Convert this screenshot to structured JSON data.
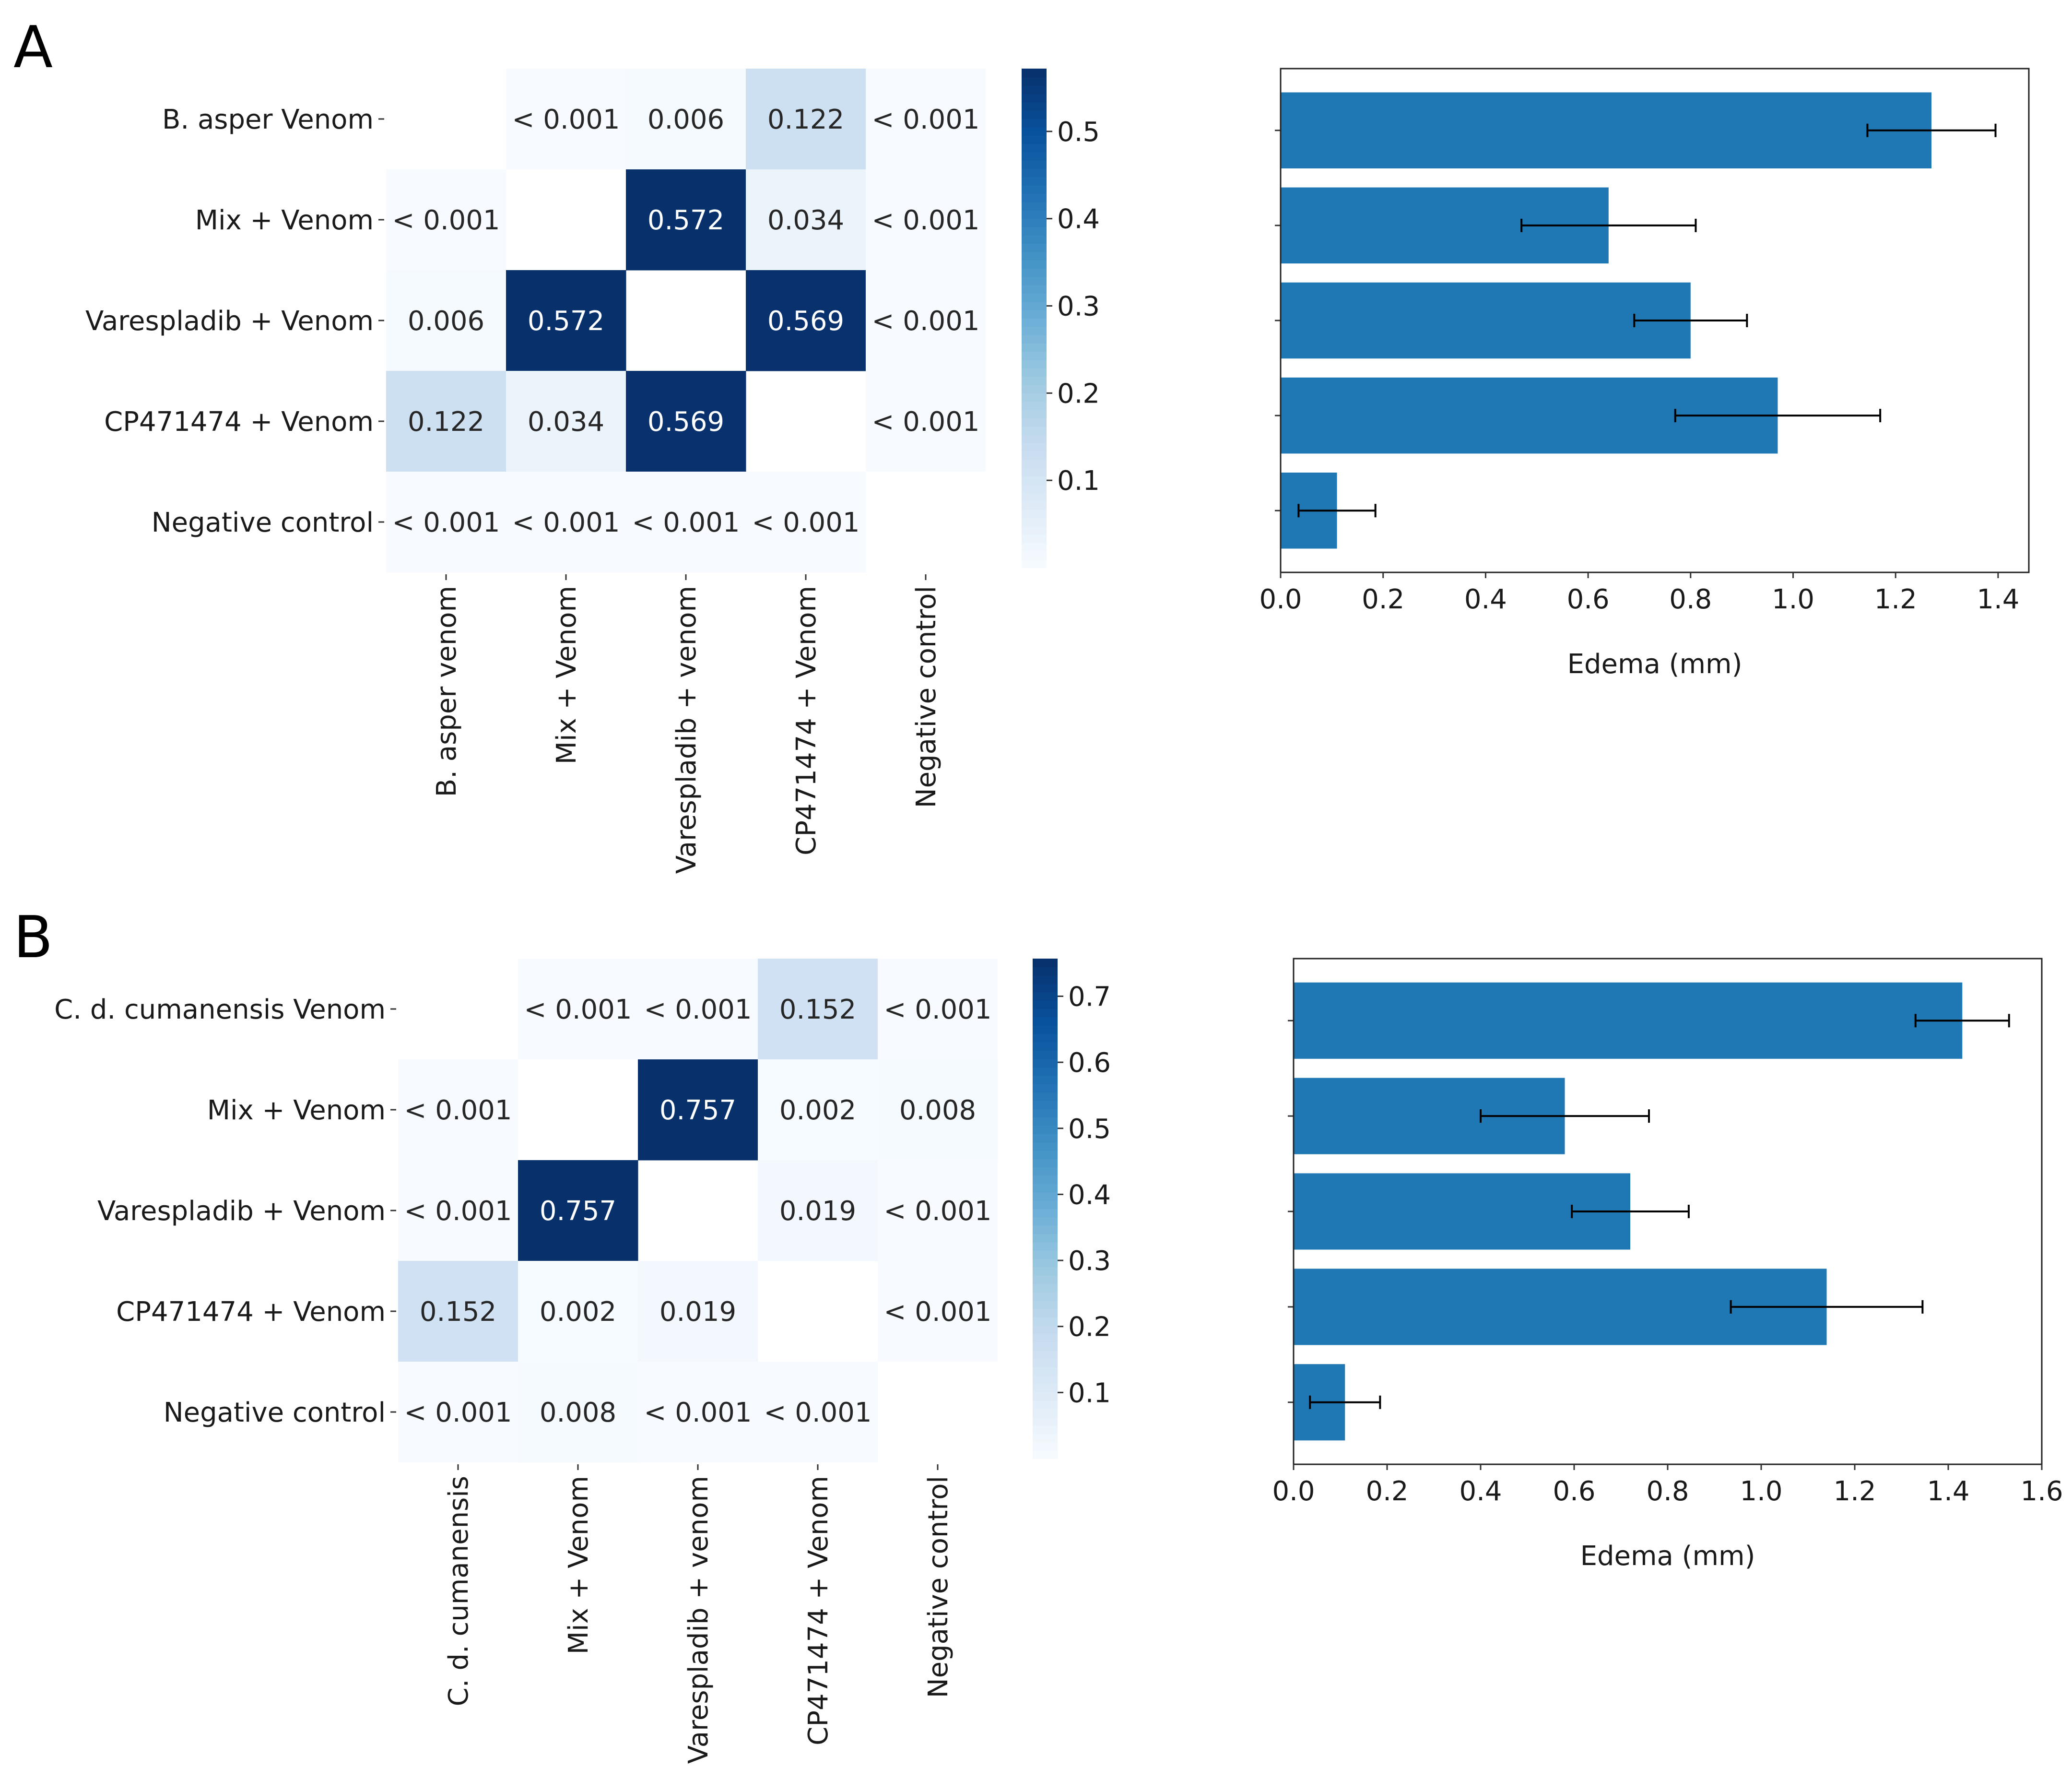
{
  "panels": [
    {
      "letter": "A",
      "chart_data": [
        {
          "type": "heatmap",
          "row_labels": [
            "B. asper Venom",
            "Mix + Venom",
            "Varespladib + Venom",
            "CP471474 + Venom",
            "Negative control"
          ],
          "col_labels": [
            "B. asper venom",
            "Mix + Venom",
            "Varespladib + venom",
            "CP471474 + Venom",
            "Negative control"
          ],
          "cells": [
            [
              null,
              "< 0.001",
              "0.006",
              "0.122",
              "< 0.001"
            ],
            [
              "< 0.001",
              null,
              "0.572",
              "0.034",
              "< 0.001"
            ],
            [
              "0.006",
              "0.572",
              null,
              "0.569",
              "< 0.001"
            ],
            [
              "0.122",
              "0.034",
              "0.569",
              null,
              "< 0.001"
            ],
            [
              "< 0.001",
              "< 0.001",
              "< 0.001",
              "< 0.001",
              null
            ]
          ],
          "colormap": "Blues",
          "vmin": 0.0,
          "vmax": 0.572,
          "colorbar_ticks": [
            "0.1",
            "0.2",
            "0.3",
            "0.4",
            "0.5"
          ]
        },
        {
          "type": "bar",
          "orientation": "horizontal",
          "values": [
            1.27,
            0.64,
            0.8,
            0.97,
            0.11
          ],
          "errors": [
            0.125,
            0.17,
            0.11,
            0.2,
            0.075
          ],
          "xlabel": "Edema (mm)",
          "xlim": [
            0.0,
            1.46
          ],
          "xticks": [
            "0.0",
            "0.2",
            "0.4",
            "0.6",
            "0.8",
            "1.0",
            "1.2",
            "1.4"
          ],
          "bar_color": "#1f77b4"
        }
      ]
    },
    {
      "letter": "B",
      "chart_data": [
        {
          "type": "heatmap",
          "row_labels": [
            "C. d. cumanensis Venom",
            "Mix + Venom",
            "Varespladib + Venom",
            "CP471474 + Venom",
            "Negative control"
          ],
          "col_labels": [
            "C. d. cumanensis",
            "Mix + Venom",
            "Varespladib + venom",
            "CP471474 + Venom",
            "Negative control"
          ],
          "cells": [
            [
              null,
              "< 0.001",
              "< 0.001",
              "0.152",
              "< 0.001"
            ],
            [
              "< 0.001",
              null,
              "0.757",
              "0.002",
              "0.008"
            ],
            [
              "< 0.001",
              "0.757",
              null,
              "0.019",
              "< 0.001"
            ],
            [
              "0.152",
              "0.002",
              "0.019",
              null,
              "< 0.001"
            ],
            [
              "< 0.001",
              "0.008",
              "< 0.001",
              "< 0.001",
              null
            ]
          ],
          "colormap": "Blues",
          "vmin": 0.0,
          "vmax": 0.757,
          "colorbar_ticks": [
            "0.1",
            "0.2",
            "0.3",
            "0.4",
            "0.5",
            "0.6",
            "0.7"
          ]
        },
        {
          "type": "bar",
          "orientation": "horizontal",
          "values": [
            1.43,
            0.58,
            0.72,
            1.14,
            0.11
          ],
          "errors": [
            0.1,
            0.18,
            0.125,
            0.205,
            0.075
          ],
          "xlabel": "Edema (mm)",
          "xlim": [
            0.0,
            1.6
          ],
          "xticks": [
            "0.0",
            "0.2",
            "0.4",
            "0.6",
            "0.8",
            "1.0",
            "1.2",
            "1.4",
            "1.6"
          ],
          "bar_color": "#1f77b4"
        }
      ]
    }
  ]
}
